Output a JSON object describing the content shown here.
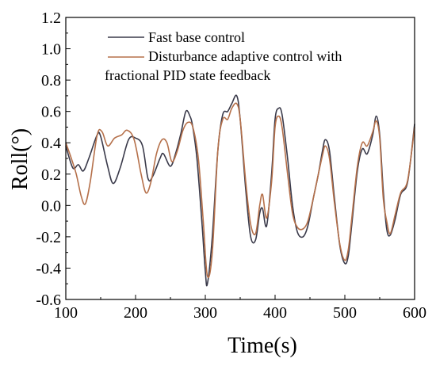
{
  "chart_data": {
    "type": "line",
    "xlabel": "Time(s)",
    "ylabel": "Roll(°)",
    "xlim": [
      100,
      600
    ],
    "ylim": [
      -0.6,
      1.2
    ],
    "xticks": [
      100,
      200,
      300,
      400,
      500,
      600
    ],
    "yticks": [
      -0.6,
      -0.4,
      -0.2,
      0.0,
      0.2,
      0.4,
      0.6,
      0.8,
      1.0,
      1.2
    ],
    "xtick_labels": [
      "100",
      "200",
      "300",
      "400",
      "500",
      "600"
    ],
    "ytick_labels": [
      "-0.6",
      "-0.4",
      "-0.2",
      "0.0",
      "0.2",
      "0.4",
      "0.6",
      "0.8",
      "1.0",
      "1.2"
    ],
    "grid": false,
    "legend_position": "top",
    "legend_label_series1": "Fast base control",
    "legend_label_series2_line1": "Disturbance adaptive control with",
    "legend_label_series2_line2": "fractional  PID state feedback",
    "series": [
      {
        "name": "Fast base control",
        "color": "#3a3a4a",
        "x": [
          100,
          110,
          118,
          125,
          133,
          145,
          150,
          160,
          168,
          178,
          190,
          200,
          210,
          218,
          225,
          235,
          240,
          250,
          258,
          265,
          272,
          278,
          282,
          288,
          295,
          300,
          303,
          310,
          318,
          325,
          332,
          338,
          345,
          350,
          358,
          365,
          372,
          378,
          382,
          388,
          395,
          400,
          405,
          410,
          418,
          425,
          432,
          440,
          447,
          455,
          462,
          468,
          472,
          478,
          485,
          493,
          500,
          505,
          510,
          518,
          525,
          532,
          540,
          545,
          550,
          555,
          560,
          565,
          572,
          580,
          590,
          600
        ],
        "y": [
          0.38,
          0.24,
          0.26,
          0.22,
          0.3,
          0.45,
          0.44,
          0.25,
          0.14,
          0.24,
          0.42,
          0.43,
          0.38,
          0.17,
          0.19,
          0.3,
          0.33,
          0.25,
          0.34,
          0.46,
          0.6,
          0.57,
          0.5,
          0.3,
          -0.1,
          -0.42,
          -0.5,
          -0.2,
          0.35,
          0.58,
          0.6,
          0.65,
          0.7,
          0.55,
          0.1,
          -0.2,
          -0.22,
          -0.05,
          -0.02,
          -0.13,
          0.2,
          0.55,
          0.62,
          0.58,
          0.3,
          0.0,
          -0.17,
          -0.2,
          -0.13,
          0.05,
          0.2,
          0.35,
          0.42,
          0.35,
          0.05,
          -0.26,
          -0.37,
          -0.32,
          -0.12,
          0.22,
          0.36,
          0.33,
          0.45,
          0.57,
          0.45,
          0.1,
          -0.15,
          -0.19,
          -0.09,
          0.07,
          0.15,
          0.52
        ]
      },
      {
        "name": "Disturbance adaptive control with fractional  PID state feedback",
        "color": "#b5704a",
        "x": [
          100,
          108,
          115,
          122,
          128,
          135,
          145,
          152,
          160,
          170,
          180,
          188,
          198,
          208,
          215,
          222,
          230,
          238,
          245,
          252,
          260,
          268,
          275,
          282,
          290,
          297,
          303,
          310,
          318,
          325,
          332,
          338,
          345,
          350,
          358,
          365,
          372,
          378,
          382,
          388,
          395,
          400,
          405,
          410,
          418,
          425,
          432,
          440,
          447,
          455,
          462,
          468,
          472,
          478,
          485,
          493,
          500,
          505,
          510,
          518,
          525,
          532,
          540,
          545,
          550,
          555,
          560,
          565,
          572,
          580,
          590,
          600
        ],
        "y": [
          0.4,
          0.3,
          0.2,
          0.06,
          0.01,
          0.15,
          0.45,
          0.47,
          0.38,
          0.43,
          0.45,
          0.48,
          0.42,
          0.2,
          0.08,
          0.15,
          0.33,
          0.42,
          0.4,
          0.28,
          0.35,
          0.48,
          0.53,
          0.5,
          0.3,
          -0.1,
          -0.45,
          -0.3,
          0.35,
          0.55,
          0.55,
          0.62,
          0.65,
          0.55,
          0.15,
          -0.12,
          -0.18,
          0.0,
          0.07,
          -0.08,
          0.15,
          0.5,
          0.57,
          0.5,
          0.2,
          -0.05,
          -0.14,
          -0.15,
          -0.1,
          0.05,
          0.2,
          0.32,
          0.38,
          0.3,
          0.02,
          -0.25,
          -0.35,
          -0.28,
          -0.08,
          0.25,
          0.4,
          0.38,
          0.47,
          0.54,
          0.43,
          0.05,
          -0.1,
          -0.18,
          -0.06,
          0.08,
          0.16,
          0.5
        ]
      }
    ]
  }
}
